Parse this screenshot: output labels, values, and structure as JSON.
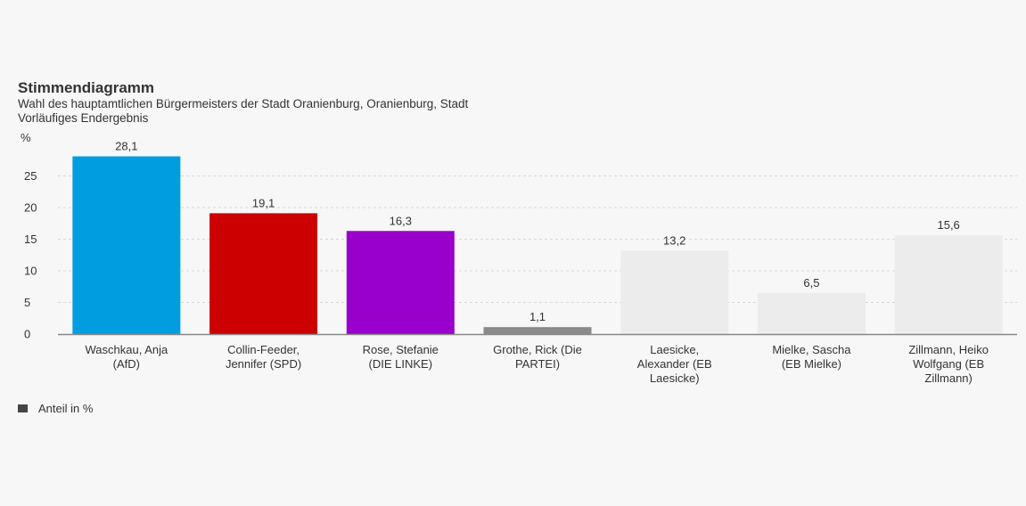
{
  "header": {
    "title": "Stimmendiagramm",
    "subtitle_line1": "Wahl des hauptamtlichen Bürgermeisters der Stadt Oranienburg, Oranienburg, Stadt",
    "subtitle_line2": "Vorläufiges Endergebnis"
  },
  "legend": {
    "label": "Anteil in %",
    "color": "#444444"
  },
  "chart_data": {
    "type": "bar",
    "ylabel": "%",
    "ylim": [
      0,
      30
    ],
    "yticks": [
      0,
      5,
      10,
      15,
      20,
      25
    ],
    "grid": true,
    "legend_position": "bottom-left",
    "categories": [
      [
        "Waschkau, Anja",
        "(AfD)"
      ],
      [
        "Collin-Feeder,",
        "Jennifer (SPD)"
      ],
      [
        "Rose, Stefanie",
        "(DIE LINKE)"
      ],
      [
        "Grothe, Rick (Die",
        "PARTEI)"
      ],
      [
        "Laesicke,",
        "Alexander (EB",
        "Laesicke)"
      ],
      [
        "Mielke, Sascha",
        "(EB Mielke)"
      ],
      [
        "Zillmann, Heiko",
        "Wolfgang (EB",
        "Zillmann)"
      ]
    ],
    "values": [
      28.1,
      19.1,
      16.3,
      1.1,
      13.2,
      6.5,
      15.6
    ],
    "value_labels": [
      "28,1",
      "19,1",
      "16,3",
      "1,1",
      "13,2",
      "6,5",
      "15,6"
    ],
    "colors": [
      "#009ee0",
      "#cc0000",
      "#9900cc",
      "#8a8a8a",
      "#ececec",
      "#ececec",
      "#ececec"
    ]
  }
}
